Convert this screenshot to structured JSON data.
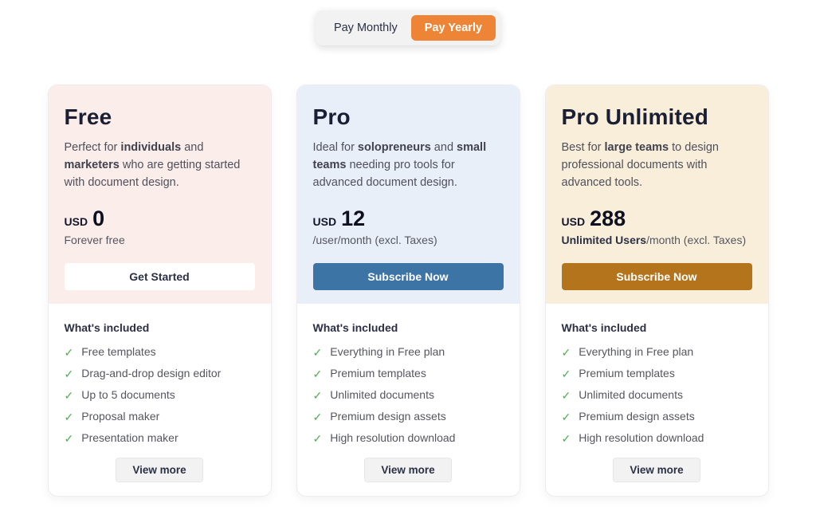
{
  "icons": {
    "check": "✓"
  },
  "billing_toggle": {
    "options": [
      {
        "label": "Pay Monthly",
        "selected": false
      },
      {
        "label": "Pay Yearly",
        "selected": true
      }
    ],
    "selected_bg": "#ee8435"
  },
  "whats_included_label": "What's included",
  "view_more_label": "View more",
  "plans": [
    {
      "name": "Free",
      "description": [
        {
          "t": "Perfect for ",
          "b": false
        },
        {
          "t": "individuals",
          "b": true
        },
        {
          "t": " and ",
          "b": false
        },
        {
          "t": "marketers",
          "b": true
        },
        {
          "t": " who are getting started with document design.",
          "b": false
        }
      ],
      "currency": "USD",
      "price": "0",
      "price_note": [
        {
          "t": "Forever free",
          "b": false
        }
      ],
      "cta_label": "Get Started",
      "features": [
        "Free templates",
        "Drag-and-drop design editor",
        "Up to 5 documents",
        "Proposal maker",
        "Presentation maker"
      ],
      "theme": {
        "header_bg": "#fbedea",
        "button_bg": "#ffffff",
        "button_color": "#2b3044"
      }
    },
    {
      "name": "Pro",
      "description": [
        {
          "t": "Ideal for ",
          "b": false
        },
        {
          "t": "solopreneurs",
          "b": true
        },
        {
          "t": " and ",
          "b": false
        },
        {
          "t": "small teams",
          "b": true
        },
        {
          "t": " needing pro tools for advanced document design.",
          "b": false
        }
      ],
      "currency": "USD",
      "price": "12",
      "price_note": [
        {
          "t": "/user/month (excl. Taxes)",
          "b": false
        }
      ],
      "cta_label": "Subscribe Now",
      "features": [
        "Everything in Free plan",
        "Premium templates",
        "Unlimited documents",
        "Premium design assets",
        "High resolution download"
      ],
      "theme": {
        "header_bg": "#e9eff8",
        "button_bg": "#3d74a6",
        "button_color": "#ffffff"
      }
    },
    {
      "name": "Pro Unlimited",
      "description": [
        {
          "t": "Best for ",
          "b": false
        },
        {
          "t": "large teams",
          "b": true
        },
        {
          "t": " to design professional documents with advanced tools.",
          "b": false
        }
      ],
      "currency": "USD",
      "price": "288",
      "price_note": [
        {
          "t": "Unlimited Users",
          "b": true
        },
        {
          "t": "/month (excl. Taxes)",
          "b": false
        }
      ],
      "cta_label": "Subscribe Now",
      "features": [
        "Everything in Free plan",
        "Premium templates",
        "Unlimited documents",
        "Premium design assets",
        "High resolution download"
      ],
      "theme": {
        "header_bg": "#f8eeda",
        "button_bg": "#b4741b",
        "button_color": "#ffffff"
      }
    }
  ]
}
